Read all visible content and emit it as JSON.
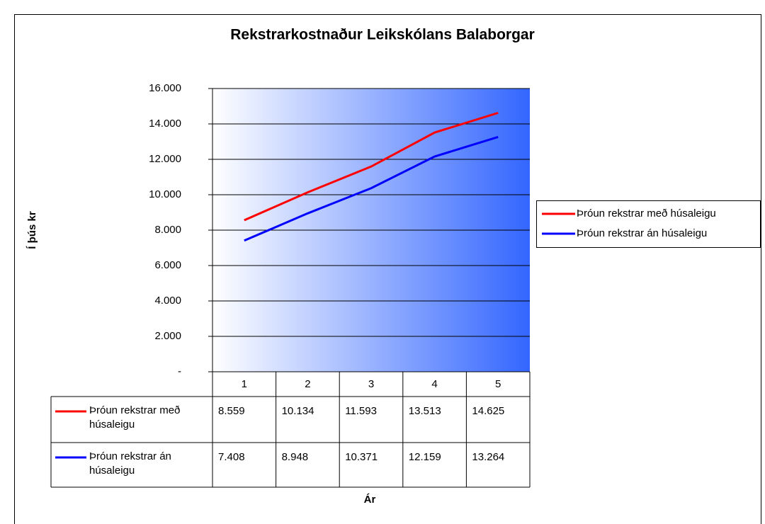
{
  "chart_data": {
    "type": "line",
    "title": "Rekstrarkostnaður Leikskólans Balaborgar",
    "y_label": "Í þús kr",
    "x_label": "Ár",
    "categories": [
      "1",
      "2",
      "3",
      "4",
      "5"
    ],
    "series": [
      {
        "name": "Þróun rekstrar með húsaleigu",
        "color": "#ff0000",
        "values": [
          8559,
          10134,
          11593,
          13513,
          14625
        ],
        "value_labels": [
          "8.559",
          "10.134",
          "11.593",
          "13.513",
          "14.625"
        ]
      },
      {
        "name": "Þróun rekstrar án húsaleigu",
        "color": "#0000ff",
        "values": [
          7408,
          8948,
          10371,
          12159,
          13264
        ],
        "value_labels": [
          "7.408",
          "8.948",
          "10.371",
          "12.159",
          "13.264"
        ]
      }
    ],
    "ylim": [
      0,
      16000
    ],
    "yticks": [
      {
        "value": 0,
        "label": "-"
      },
      {
        "value": 2000,
        "label": "2.000"
      },
      {
        "value": 4000,
        "label": "4.000"
      },
      {
        "value": 6000,
        "label": "6.000"
      },
      {
        "value": 8000,
        "label": "8.000"
      },
      {
        "value": 10000,
        "label": "10.000"
      },
      {
        "value": 12000,
        "label": "12.000"
      },
      {
        "value": 14000,
        "label": "14.000"
      },
      {
        "value": 16000,
        "label": "16.000"
      }
    ],
    "grid": true,
    "legend": "right"
  }
}
